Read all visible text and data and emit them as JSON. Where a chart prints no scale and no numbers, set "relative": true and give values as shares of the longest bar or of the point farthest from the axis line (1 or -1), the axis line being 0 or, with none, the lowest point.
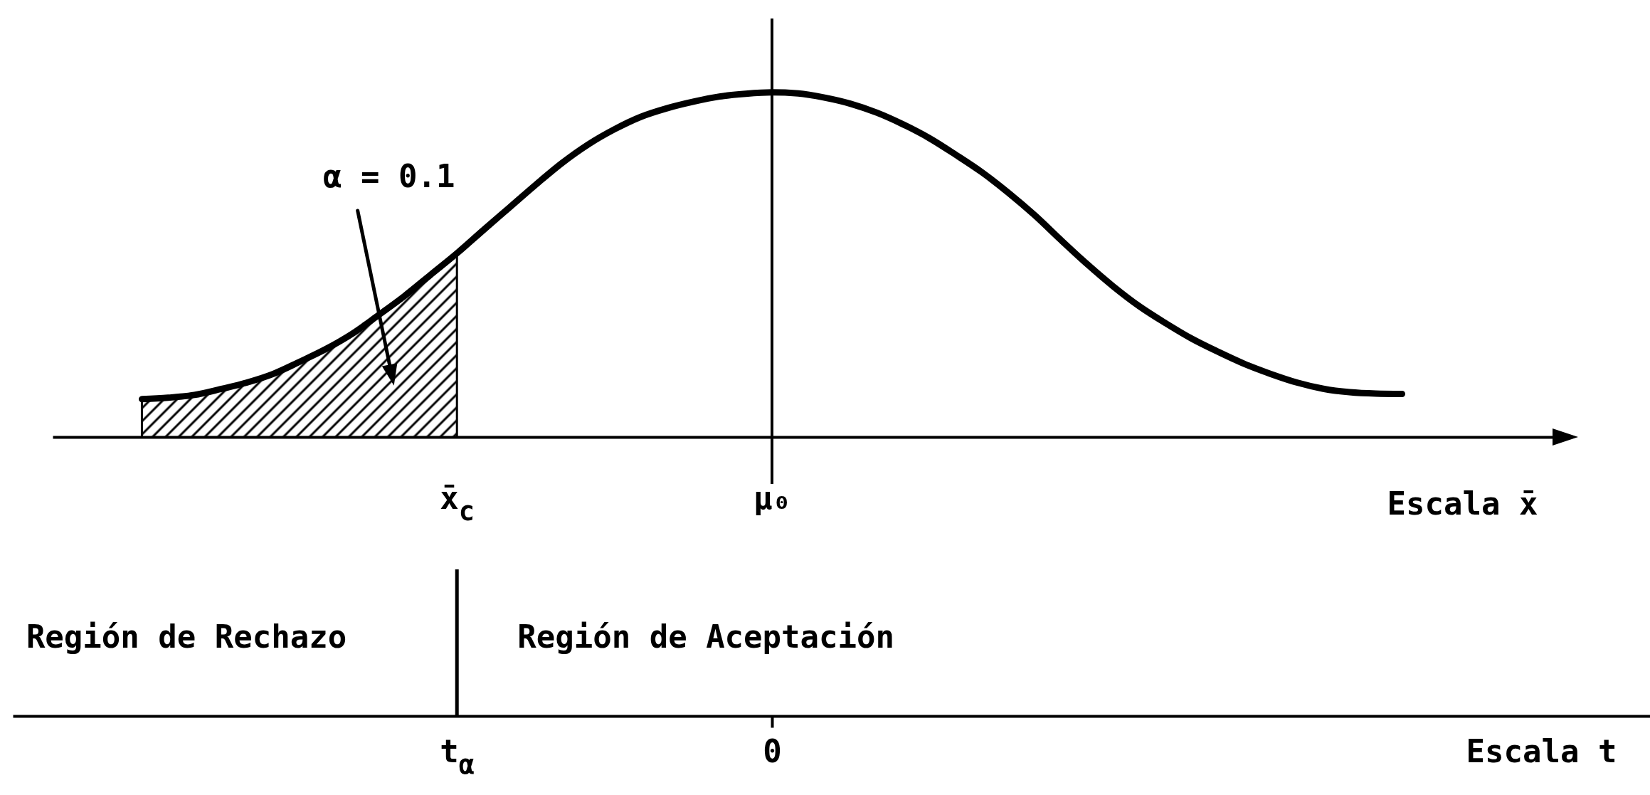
{
  "chart_data": [
    {
      "type": "line",
      "relative": true,
      "categories": [
        null,
        null,
        null,
        null,
        null,
        null,
        null,
        null,
        null,
        null,
        null,
        null,
        "x̄$_{c}$",
        null,
        null,
        null,
        null,
        null,
        null,
        null,
        null,
        null,
        null,
        null,
        "μ₀",
        null,
        null,
        null,
        null,
        null,
        null,
        null,
        null,
        null,
        null,
        null,
        null,
        null,
        null,
        null,
        null,
        null,
        null,
        null,
        null,
        null,
        null,
        null,
        null
      ],
      "series": [
        {
          "type": "line",
          "color": "#000000",
          "values": [
            0.11,
            0.114,
            0.122,
            0.139,
            0.158,
            0.183,
            0.218,
            0.255,
            0.299,
            0.353,
            0.409,
            0.471,
            0.533,
            0.6,
            0.666,
            0.732,
            0.795,
            0.849,
            0.893,
            0.929,
            0.954,
            0.973,
            0.988,
            0.996,
            1,
            0.997,
            0.985,
            0.967,
            0.941,
            0.907,
            0.867,
            0.819,
            0.768,
            0.709,
            0.644,
            0.572,
            0.502,
            0.437,
            0.379,
            0.33,
            0.285,
            0.247,
            0.212,
            0.183,
            0.158,
            0.14,
            0.13,
            0.126,
            0.125
          ]
        },
        {
          "type": "area",
          "color": "#000000",
          "values": [
            0.11,
            0.114,
            0.122,
            0.139,
            0.158,
            0.183,
            0.218,
            0.255,
            0.299,
            0.353,
            0.409,
            0.471,
            0.533,
            null,
            null,
            null,
            null,
            null,
            null,
            null,
            null,
            null,
            null,
            null,
            null,
            null,
            null,
            null,
            null,
            null,
            null,
            null,
            null,
            null,
            null,
            null,
            null,
            null,
            null,
            null,
            null,
            null,
            null,
            null,
            null,
            null,
            null,
            null,
            null
          ]
        }
      ],
      "xlabel": "Escala x̄",
      "ref_lines": [
        {
          "axis": "x",
          "value": "μ₀"
        }
      ],
      "annotations": [
        "α = 0.1"
      ]
    },
    {
      "type": "other",
      "categories": [
        null,
        null,
        null,
        null,
        null,
        null,
        null,
        null,
        null,
        null,
        null,
        null,
        "t$_{α}$",
        null,
        null,
        null,
        null,
        null,
        null,
        null,
        null,
        null,
        null,
        null,
        "0",
        null,
        null,
        null,
        null,
        null,
        null,
        null,
        null,
        null,
        null,
        null,
        null,
        null,
        null,
        null,
        null,
        null,
        null,
        null,
        null,
        null,
        null,
        null,
        null
      ],
      "xlabel": "Escala t",
      "annotations": [
        "Región de Rechazo",
        "Región de Aceptación"
      ]
    }
  ]
}
